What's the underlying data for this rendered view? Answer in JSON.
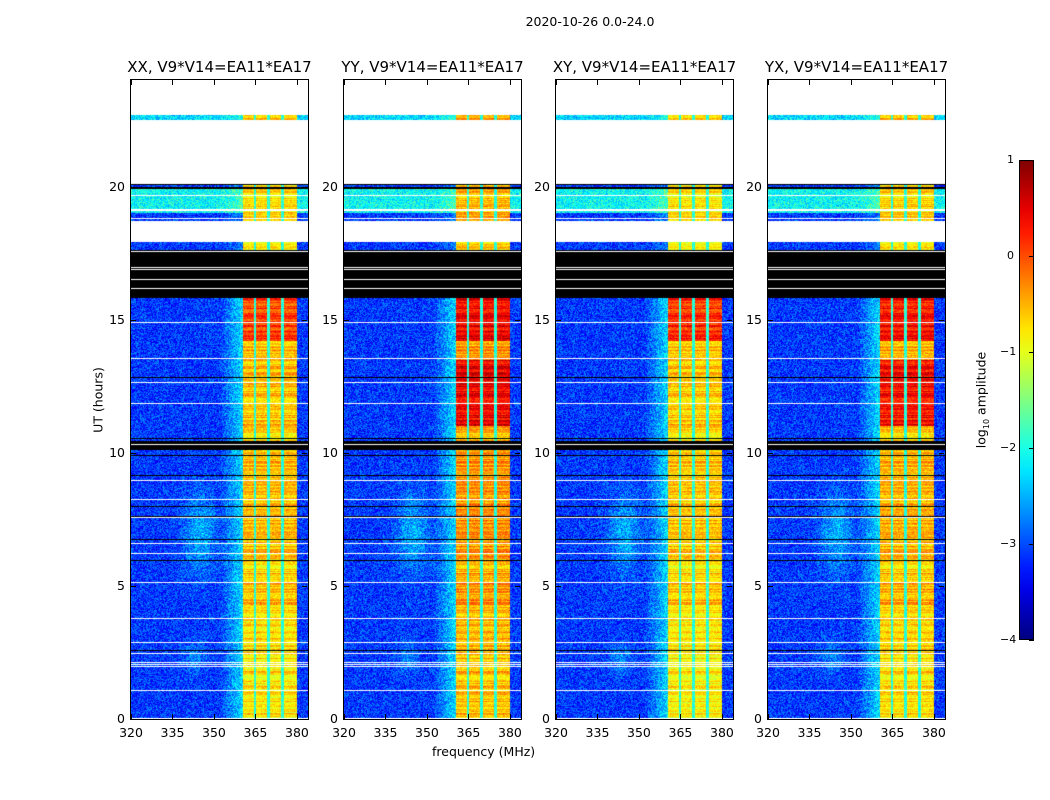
{
  "chart_data": {
    "type": "heatmap",
    "title": "2020-10-26 0.0-24.0",
    "xlabel": "frequency (MHz)",
    "ylabel": "UT (hours)",
    "xlim": [
      320,
      384
    ],
    "ylim": [
      0,
      24
    ],
    "xticks": [
      "320",
      "335",
      "350",
      "365",
      "380"
    ],
    "xtick_values": [
      320,
      335,
      350,
      365,
      380
    ],
    "yticks": [
      "0",
      "5",
      "10",
      "15",
      "20"
    ],
    "ytick_values": [
      0,
      5,
      10,
      15,
      20
    ],
    "colormap": "jet",
    "colorbar": {
      "label_prefix": "log",
      "label_sub": "10",
      "label_suffix": " amplitude",
      "range": [
        -4,
        1
      ],
      "ticks": [
        "1",
        "0",
        "−1",
        "−2",
        "−3",
        "−4"
      ],
      "tick_values": [
        1,
        0,
        -1,
        -2,
        -3,
        -4
      ]
    },
    "background_level": -3.0,
    "rfi_band_mhz": [
      360.4,
      380
    ],
    "rfi_subband_edges_mhz": [
      364.6,
      369.6,
      374.6
    ],
    "blank_ranges_hours": [
      [
        17.9,
        18.7
      ],
      [
        20.1,
        22.5
      ],
      [
        22.7,
        24
      ]
    ],
    "flagged_ranges_hours": [
      [
        15.8,
        17.6
      ],
      [
        10.1,
        10.45
      ]
    ],
    "panels": [
      {
        "title": "XX, V9*V14=EA11*EA17",
        "band_level": -0.75,
        "peak_level": 0.1
      },
      {
        "title": "YY, V9*V14=EA11*EA17",
        "band_level": -0.55,
        "peak_level": 0.45
      },
      {
        "title": "XY, V9*V14=EA11*EA17",
        "band_level": -0.8,
        "peak_level": 0.2
      },
      {
        "title": "YX, V9*V14=EA11*EA17",
        "band_level": -0.7,
        "peak_level": 0.35
      }
    ]
  }
}
